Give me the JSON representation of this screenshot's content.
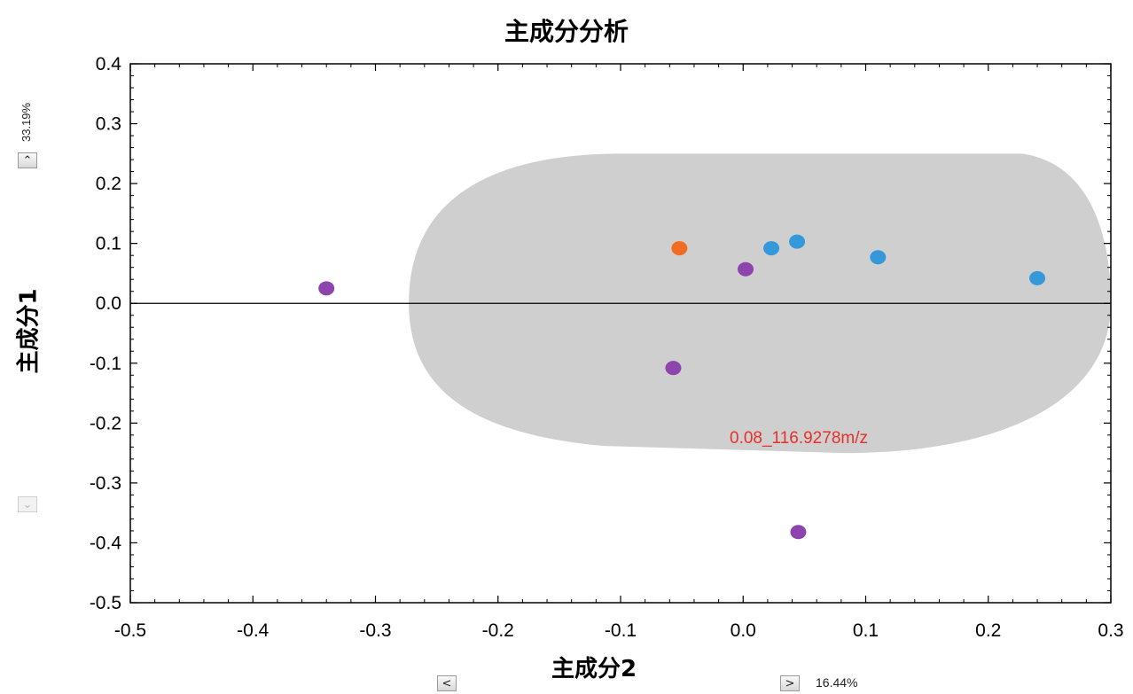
{
  "chart_data": {
    "type": "scatter",
    "title": "主成分分析",
    "xlabel": "主成分2",
    "ylabel": "主成分1",
    "xlim": [
      -0.5,
      0.3
    ],
    "ylim": [
      -0.5,
      0.4
    ],
    "xticks": [
      "-0.5",
      "-0.4",
      "-0.3",
      "-0.2",
      "-0.1",
      "0.0",
      "0.1",
      "0.2",
      "0.3"
    ],
    "yticks": [
      "0.4",
      "0.3",
      "0.2",
      "0.1",
      "0.0",
      "-0.1",
      "-0.2",
      "-0.3",
      "-0.4",
      "-0.5"
    ],
    "x_variance_label": "16.44%",
    "y_variance_label": "33.19%",
    "annotation": "0.08_116.9278m/z",
    "loadings_cloud": {
      "color": "#cfcfcf",
      "x_range": [
        -0.28,
        0.3
      ],
      "y_range": [
        -0.25,
        0.25
      ]
    },
    "series": [
      {
        "color": "#8e44ad",
        "points": [
          [
            -0.34,
            0.025
          ],
          [
            0.002,
            0.057
          ],
          [
            -0.057,
            -0.108
          ],
          [
            0.045,
            -0.382
          ]
        ]
      },
      {
        "color": "#f26b22",
        "points": [
          [
            -0.052,
            0.092
          ]
        ]
      },
      {
        "color": "#3498db",
        "points": [
          [
            0.023,
            0.092
          ],
          [
            0.044,
            0.103
          ],
          [
            0.11,
            0.077
          ],
          [
            0.24,
            0.042
          ]
        ]
      }
    ]
  },
  "controls": {
    "up": "⌃",
    "down": "⌄",
    "left": "<",
    "right": ">"
  }
}
